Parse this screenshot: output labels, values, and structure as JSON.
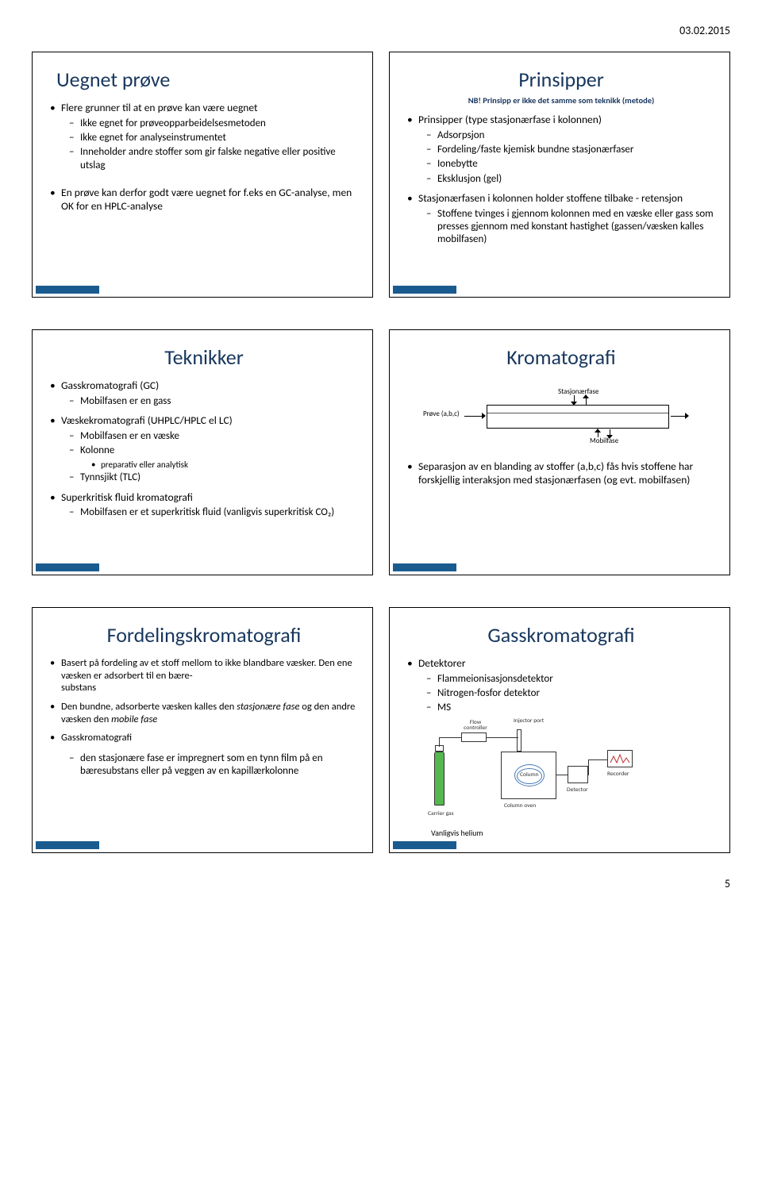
{
  "header": {
    "date": "03.02.2015"
  },
  "page_number": "5",
  "slides": [
    {
      "title": "Uegnet prøve",
      "bullets": [
        {
          "text": "Flere grunner til at en prøve kan være uegnet",
          "sub": [
            "Ikke egnet for prøveopparbeidelsesmetoden",
            "Ikke egnet for analyseinstrumentet",
            "Inneholder andre stoffer som gir falske negative eller positive utslag"
          ]
        },
        {
          "text": "En prøve kan derfor godt være uegnet for f.eks en GC-analyse, men OK for en HPLC-analyse"
        }
      ]
    },
    {
      "title": "Prinsipper",
      "subtitle": "NB! Prinsipp er ikke det samme som teknikk (metode)",
      "bullets": [
        {
          "text": "Prinsipper (type stasjonærfase i kolonnen)",
          "sub": [
            "Adsorpsjon",
            "Fordeling/faste kjemisk bundne stasjonærfaser",
            "Ionebytte",
            "Eksklusjon (gel)"
          ]
        },
        {
          "text": "Stasjonærfasen i kolonnen holder stoffene tilbake - retensjon",
          "sub": [
            "Stoffene tvinges i gjennom kolonnen med en væske eller gass som presses gjennom med konstant hastighet (gassen/væsken kalles mobilfasen)"
          ]
        }
      ]
    },
    {
      "title": "Teknikker",
      "bullets": [
        {
          "text": "Gasskromatografi (GC)",
          "sub": [
            "Mobilfasen er en gass"
          ]
        },
        {
          "text": "Væskekromatografi (UHPLC/HPLC el LC)",
          "sub": [
            "Mobilfasen er en væske",
            "Kolonne",
            "Tynnsjikt (TLC)"
          ],
          "subsub_after_index": 1,
          "subsub": [
            "preparativ eller analytisk"
          ]
        },
        {
          "text": "Superkritisk fluid kromatografi",
          "sub": [
            "Mobilfasen er et superkritisk fluid (vanligvis superkritisk CO₂)"
          ]
        }
      ]
    },
    {
      "title": "Kromatografi",
      "diagram": {
        "label_top": "Stasjonærfase",
        "label_bottom": "Mobilfase",
        "label_left": "Prøve (a,b,c)"
      },
      "bullets": [
        {
          "text": "Separasjon av en blanding av stoffer (a,b,c) fås hvis stoffene har forskjellig interaksjon med stasjonærfasen (og evt. mobilfasen)"
        }
      ]
    },
    {
      "title": "Fordelingskromatografi",
      "bullets": [
        {
          "text_pre": "Basert på fordeling av et stoff mellom to ikke blandbare væsker. Den ene væsken er adsorbert til en bære-",
          "text_post": "substans"
        },
        {
          "html": "Den bundne, adsorberte væsken kalles den <i>stasjonære fase</i> og den andre væsken den <i>mobile fase</i>"
        },
        {
          "text": "Gasskromatografi",
          "sub": [
            "den stasjonære fase er impregnert som en tynn film på en bæresubstans eller på veggen av en kapillærkolonne"
          ]
        }
      ]
    },
    {
      "title": "Gasskromatografi",
      "bullets": [
        {
          "text": "Detektorer",
          "sub": [
            "Flammeionisasjonsdetektor",
            "Nitrogen-fosfor detektor",
            "MS"
          ]
        }
      ],
      "gc_diagram": {
        "flow_controller": "Flow controller",
        "injector": "Injector port",
        "column": "Column",
        "column_oven": "Column oven",
        "detector": "Detector",
        "recorder": "Recorder",
        "carrier": "Carrier gas",
        "helium": "Vanligvis helium"
      }
    }
  ]
}
